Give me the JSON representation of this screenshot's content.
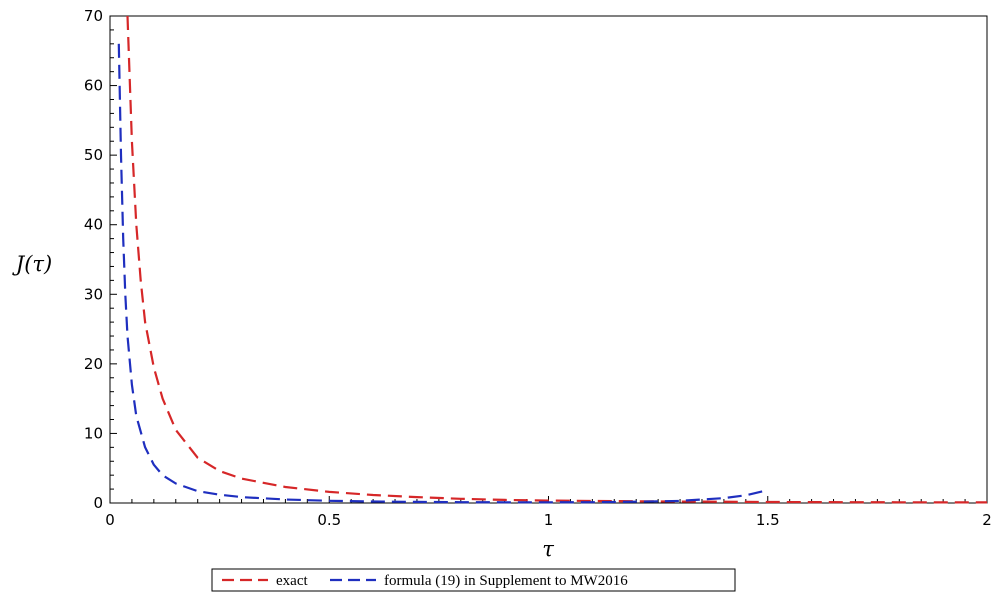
{
  "chart_data": {
    "type": "line",
    "xlabel": "τ",
    "ylabel": "J(τ)",
    "xlim": [
      0,
      2
    ],
    "ylim": [
      0,
      70
    ],
    "x_ticks": [
      0,
      0.5,
      1,
      1.5,
      2
    ],
    "x_tick_labels": [
      "0",
      "0.5",
      "1",
      "1.5",
      "2"
    ],
    "y_ticks": [
      0,
      10,
      20,
      30,
      40,
      50,
      60,
      70
    ],
    "y_tick_labels": [
      "0",
      "10",
      "20",
      "30",
      "40",
      "50",
      "60",
      "70"
    ],
    "grid": false,
    "legend_position": "bottom",
    "series": [
      {
        "name": "exact",
        "color": "#d62728",
        "dash": "dashed",
        "x": [
          0.04,
          0.05,
          0.06,
          0.07,
          0.08,
          0.1,
          0.12,
          0.15,
          0.2,
          0.25,
          0.3,
          0.4,
          0.5,
          0.6,
          0.7,
          0.8,
          0.9,
          1.0,
          1.2,
          1.5,
          1.8,
          2.0
        ],
        "y": [
          70,
          52,
          40,
          32,
          26,
          19.5,
          15,
          10.5,
          6.5,
          4.6,
          3.5,
          2.3,
          1.6,
          1.15,
          0.85,
          0.6,
          0.45,
          0.35,
          0.25,
          0.15,
          0.1,
          0.08
        ]
      },
      {
        "name": "formula (19) in Supplement to MW2016",
        "color": "#1f2fbf",
        "dash": "dashed",
        "x": [
          0.02,
          0.025,
          0.03,
          0.035,
          0.04,
          0.05,
          0.06,
          0.08,
          0.1,
          0.12,
          0.15,
          0.2,
          0.25,
          0.3,
          0.4,
          0.5,
          0.6,
          0.7,
          0.8,
          0.9,
          1.0,
          1.1,
          1.2,
          1.3,
          1.4,
          1.45,
          1.49
        ],
        "y": [
          66,
          50,
          38,
          30,
          24,
          17,
          12.5,
          8,
          5.5,
          4,
          2.8,
          1.7,
          1.2,
          0.85,
          0.5,
          0.32,
          0.22,
          0.16,
          0.12,
          0.1,
          0.1,
          0.12,
          0.18,
          0.3,
          0.7,
          1.1,
          1.7
        ]
      }
    ]
  }
}
